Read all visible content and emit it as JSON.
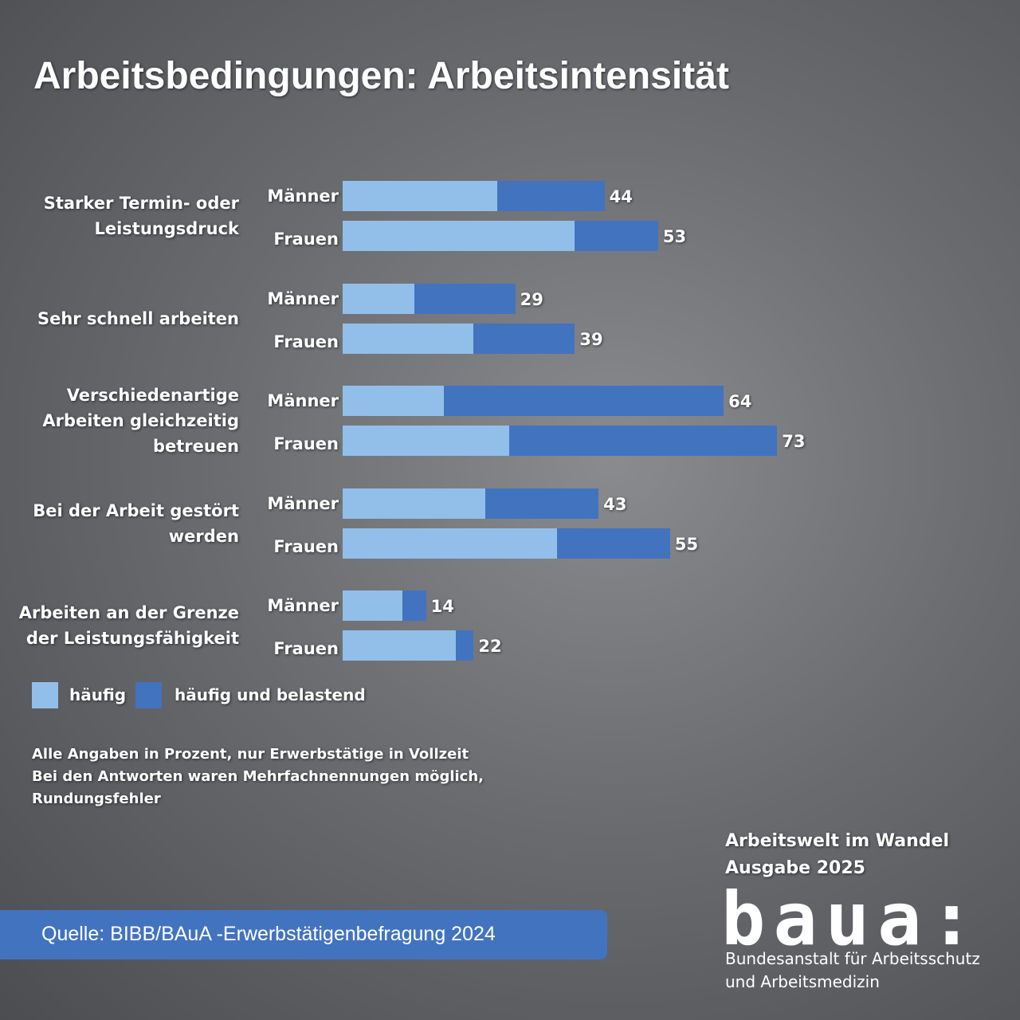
{
  "chart_data": {
    "type": "bar",
    "orientation": "horizontal",
    "stacked": true,
    "title": "Arbeitsbedingungen: Arbeitsintensität",
    "groups": [
      "Starker Termin- oder Leistungsdruck",
      "Sehr schnell arbeiten",
      "Verschiedenartige Arbeiten gleichzeitig betreuen",
      "Bei der Arbeit gestört werden",
      "Arbeiten an der Grenze der Leistungsfähigkeit"
    ],
    "categories": [
      "Männer",
      "Frauen",
      "Männer",
      "Frauen",
      "Männer",
      "Frauen",
      "Männer",
      "Frauen",
      "Männer",
      "Frauen"
    ],
    "series": [
      {
        "name": "häufig",
        "color": "#92bfea",
        "values": [
          26,
          39,
          12,
          22,
          17,
          28,
          24,
          36,
          10,
          19
        ]
      },
      {
        "name": "häufig und belastend",
        "color": "#4273bf",
        "values": [
          18,
          14,
          17,
          17,
          47,
          45,
          19,
          19,
          4,
          3
        ]
      }
    ],
    "totals": [
      44,
      53,
      29,
      39,
      64,
      73,
      43,
      55,
      14,
      22
    ],
    "notes": [
      "Alle Angaben in Prozent, nur Erwerbstätige in Vollzeit",
      "Bei den Antworten waren Mehrfachnennungen möglich,",
      "Rundungsfehler"
    ],
    "source": "Quelle: BIBB/BAuA -Erwerbstätigenbefragung 2024",
    "publication": [
      "Arbeitswelt im Wandel",
      "Ausgabe 2025"
    ],
    "logo": "baua:",
    "publisher": [
      "Bundesanstalt für Arbeitsschutz",
      "und Arbeitsmedizin"
    ]
  }
}
